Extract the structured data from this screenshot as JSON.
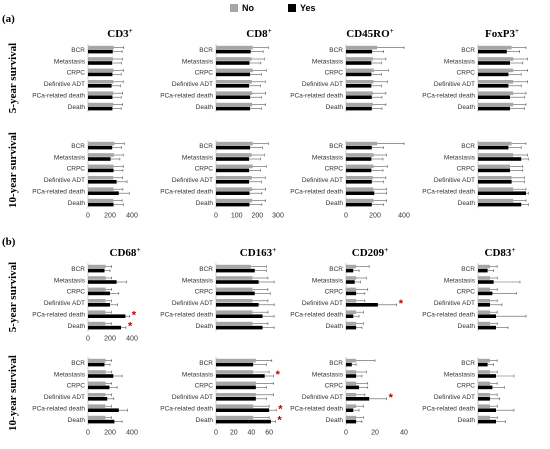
{
  "legend": [
    {
      "label": "No",
      "color": "#a6a6a6"
    },
    {
      "label": "Yes",
      "color": "#000000"
    }
  ],
  "panels": [
    {
      "label": "(a)"
    },
    {
      "label": "(b)"
    }
  ],
  "row_labels": [
    "5-year survival",
    "10-year survival"
  ],
  "significance_marker": "*",
  "colors": {
    "no": "#a6a6a6",
    "yes": "#000000",
    "star": "#c00000",
    "axis": "#bfbfbf",
    "error": "#595959"
  },
  "chart_data": [
    {
      "type": "bar",
      "panel": "a",
      "marker": "CD3",
      "marker_sup": "+",
      "row": "5-year survival",
      "categories": [
        "BCR",
        "Metastasis",
        "CRPC",
        "Definitive ADT",
        "PCa-related death",
        "Death"
      ],
      "xticks": [
        0,
        200,
        400
      ],
      "xlim": [
        0,
        400
      ],
      "ticks_shown": false,
      "series": [
        {
          "name": "No",
          "values": [
            235,
            228,
            232,
            230,
            230,
            230
          ],
          "errors": [
            90,
            85,
            90,
            90,
            85,
            85
          ]
        },
        {
          "name": "Yes",
          "values": [
            225,
            220,
            222,
            215,
            222,
            222
          ],
          "errors": [
            85,
            85,
            80,
            80,
            80,
            80
          ]
        }
      ],
      "significant": []
    },
    {
      "type": "bar",
      "panel": "a",
      "marker": "CD8",
      "marker_sup": "+",
      "row": "5-year survival",
      "categories": [
        "BCR",
        "Metastasis",
        "CRPC",
        "Definitive ADT",
        "PCa-related death",
        "Death"
      ],
      "xticks": [
        0,
        100,
        200,
        300
      ],
      "xlim": [
        0,
        300
      ],
      "ticks_shown": false,
      "series": [
        {
          "name": "No",
          "values": [
            178,
            172,
            178,
            173,
            175,
            175
          ],
          "errors": [
            75,
            62,
            65,
            65,
            65,
            65
          ]
        },
        {
          "name": "Yes",
          "values": [
            168,
            162,
            165,
            160,
            165,
            165
          ],
          "errors": [
            60,
            55,
            55,
            55,
            55,
            55
          ]
        }
      ],
      "significant": []
    },
    {
      "type": "bar",
      "panel": "a",
      "marker": "CD45RO",
      "marker_sup": "+",
      "row": "5-year survival",
      "categories": [
        "BCR",
        "Metastasis",
        "CRPC",
        "Definitive ADT",
        "PCa-related death",
        "Death"
      ],
      "xticks": [
        0,
        200,
        400
      ],
      "xlim": [
        0,
        400
      ],
      "ticks_shown": false,
      "series": [
        {
          "name": "No",
          "values": [
            215,
            185,
            192,
            190,
            185,
            185
          ],
          "errors": [
            185,
            90,
            100,
            95,
            90,
            90
          ]
        },
        {
          "name": "Yes",
          "values": [
            180,
            175,
            175,
            175,
            178,
            178
          ],
          "errors": [
            80,
            70,
            70,
            70,
            70,
            70
          ]
        }
      ],
      "significant": []
    },
    {
      "type": "bar",
      "panel": "a",
      "marker": "FoxP3",
      "marker_sup": "+",
      "row": "5-year survival",
      "categories": [
        "BCR",
        "Metastasis",
        "CRPC",
        "Definitive ADT",
        "PCa-related death",
        "Death"
      ],
      "xticks": [
        0,
        10,
        20,
        30
      ],
      "xlim": [
        0,
        30
      ],
      "ticks_shown": false,
      "series": [
        {
          "name": "No",
          "values": [
            21,
            22,
            22,
            22,
            22,
            22
          ],
          "errors": [
            9,
            9,
            9,
            9,
            8,
            8
          ]
        },
        {
          "name": "Yes",
          "values": [
            18,
            20,
            19,
            19,
            20,
            20
          ],
          "errors": [
            8,
            8,
            8,
            8,
            9,
            9
          ]
        }
      ],
      "significant": []
    },
    {
      "type": "bar",
      "panel": "a",
      "marker": "CD3",
      "marker_sup": "+",
      "row": "10-year survival",
      "categories": [
        "BCR",
        "Metastasis",
        "CRPC",
        "Definitive ADT",
        "PCa-related death",
        "Death"
      ],
      "xticks": [
        0,
        200,
        400
      ],
      "xlim": [
        0,
        400
      ],
      "ticks_shown": true,
      "series": [
        {
          "name": "No",
          "values": [
            240,
            235,
            232,
            230,
            232,
            230
          ],
          "errors": [
            90,
            85,
            90,
            85,
            85,
            80
          ]
        },
        {
          "name": "Yes",
          "values": [
            220,
            205,
            232,
            260,
            280,
            232
          ],
          "errors": [
            85,
            85,
            85,
            95,
            95,
            90
          ]
        }
      ],
      "significant": []
    },
    {
      "type": "bar",
      "panel": "a",
      "marker": "CD8",
      "marker_sup": "+",
      "row": "10-year survival",
      "categories": [
        "BCR",
        "Metastasis",
        "CRPC",
        "Definitive ADT",
        "PCa-related death",
        "Death"
      ],
      "xticks": [
        0,
        100,
        200,
        300
      ],
      "xlim": [
        0,
        300
      ],
      "ticks_shown": true,
      "series": [
        {
          "name": "No",
          "values": [
            178,
            172,
            178,
            173,
            175,
            175
          ],
          "errors": [
            75,
            62,
            65,
            65,
            65,
            65
          ]
        },
        {
          "name": "Yes",
          "values": [
            165,
            160,
            160,
            160,
            162,
            162
          ],
          "errors": [
            60,
            55,
            55,
            60,
            60,
            60
          ]
        }
      ],
      "significant": []
    },
    {
      "type": "bar",
      "panel": "a",
      "marker": "CD45RO",
      "marker_sup": "+",
      "row": "10-year survival",
      "categories": [
        "BCR",
        "Metastasis",
        "CRPC",
        "Definitive ADT",
        "PCa-related death",
        "Death"
      ],
      "xticks": [
        0,
        200,
        400
      ],
      "xlim": [
        0,
        400
      ],
      "ticks_shown": true,
      "series": [
        {
          "name": "No",
          "values": [
            215,
            190,
            190,
            185,
            188,
            190
          ],
          "errors": [
            185,
            90,
            95,
            90,
            90,
            90
          ]
        },
        {
          "name": "Yes",
          "values": [
            178,
            175,
            175,
            178,
            195,
            178
          ],
          "errors": [
            80,
            80,
            80,
            80,
            85,
            80
          ]
        }
      ],
      "significant": []
    },
    {
      "type": "bar",
      "panel": "a",
      "marker": "FoxP3",
      "marker_sup": "+",
      "row": "10-year survival",
      "categories": [
        "BCR",
        "Metastasis",
        "CRPC",
        "Definitive ADT",
        "PCa-related death",
        "Death"
      ],
      "xticks": [
        0,
        10,
        20,
        30
      ],
      "xlim": [
        0,
        30
      ],
      "ticks_shown": false,
      "series": [
        {
          "name": "No",
          "values": [
            21,
            22,
            20,
            21,
            22,
            22
          ],
          "errors": [
            9,
            9,
            8,
            8,
            8,
            8
          ]
        },
        {
          "name": "Yes",
          "values": [
            19,
            27,
            20,
            21,
            30,
            27
          ],
          "errors": [
            8,
            10,
            8,
            8,
            11,
            10
          ]
        }
      ],
      "significant": []
    },
    {
      "type": "bar",
      "panel": "b",
      "marker": "CD68",
      "marker_sup": "+",
      "row": "5-year survival",
      "categories": [
        "BCR",
        "Metastasis",
        "CRPC",
        "Definitive ADT",
        "PCa-related death",
        "Death"
      ],
      "xticks": [
        0,
        200,
        400
      ],
      "xlim": [
        0,
        400
      ],
      "ticks_shown": true,
      "series": [
        {
          "name": "No",
          "values": [
            160,
            160,
            160,
            158,
            158,
            158
          ],
          "errors": [
            55,
            55,
            55,
            55,
            55,
            55
          ]
        },
        {
          "name": "Yes",
          "values": [
            150,
            260,
            200,
            200,
            340,
            300
          ],
          "errors": [
            50,
            90,
            80,
            70,
            40,
            45
          ]
        }
      ],
      "significant": [
        "PCa-related death",
        "Death"
      ]
    },
    {
      "type": "bar",
      "panel": "b",
      "marker": "CD163",
      "marker_sup": "+",
      "row": "5-year survival",
      "categories": [
        "BCR",
        "Metastasis",
        "CRPC",
        "Definitive ADT",
        "PCa-related death",
        "Death"
      ],
      "xticks": [
        0,
        20,
        40,
        60,
        80
      ],
      "xlim": [
        0,
        80
      ],
      "ticks_shown": false,
      "series": [
        {
          "name": "No",
          "values": [
            45,
            47,
            47,
            47,
            47,
            47
          ],
          "errors": [
            20,
            20,
            20,
            20,
            20,
            20
          ]
        },
        {
          "name": "Yes",
          "values": [
            50,
            55,
            50,
            55,
            60,
            60
          ],
          "errors": [
            15,
            20,
            20,
            20,
            15,
            15
          ]
        }
      ],
      "significant": []
    },
    {
      "type": "bar",
      "panel": "b",
      "marker": "CD209",
      "marker_sup": "+",
      "row": "5-year survival",
      "categories": [
        "BCR",
        "Metastasis",
        "CRPC",
        "Definitive ADT",
        "PCa-related death",
        "Death"
      ],
      "xticks": [
        0,
        20,
        40
      ],
      "xlim": [
        0,
        40
      ],
      "ticks_shown": false,
      "series": [
        {
          "name": "No",
          "values": [
            7,
            7,
            7,
            7,
            7,
            7
          ],
          "errors": [
            9,
            7,
            8,
            6,
            5,
            5
          ]
        },
        {
          "name": "Yes",
          "values": [
            5,
            6,
            7,
            22,
            5,
            7
          ],
          "errors": [
            4,
            4,
            6,
            13,
            4,
            4
          ]
        }
      ],
      "significant": [
        "Definitive ADT"
      ]
    },
    {
      "type": "bar",
      "panel": "b",
      "marker": "CD83",
      "marker_sup": "+",
      "row": "5-year survival",
      "categories": [
        "BCR",
        "Metastasis",
        "CRPC",
        "Definitive ADT",
        "PCa-related death",
        "Death"
      ],
      "xticks": [
        0,
        20,
        40
      ],
      "xlim": [
        0,
        40
      ],
      "ticks_shown": false,
      "series": [
        {
          "name": "No",
          "values": [
            10,
            10,
            10,
            10,
            10,
            10
          ],
          "errors": [
            6,
            6,
            6,
            6,
            6,
            6
          ]
        },
        {
          "name": "Yes",
          "values": [
            8,
            13,
            12,
            10,
            15,
            15
          ],
          "errors": [
            5,
            22,
            20,
            10,
            25,
            10
          ]
        }
      ],
      "significant": []
    },
    {
      "type": "bar",
      "panel": "b",
      "marker": "CD68",
      "marker_sup": "+",
      "row": "10-year survival",
      "categories": [
        "BCR",
        "Metastasis",
        "CRPC",
        "Definitive ADT",
        "PCa-related death",
        "Death"
      ],
      "xticks": [
        0,
        200,
        400
      ],
      "xlim": [
        0,
        400
      ],
      "ticks_shown": true,
      "series": [
        {
          "name": "No",
          "values": [
            160,
            160,
            160,
            158,
            158,
            158
          ],
          "errors": [
            55,
            55,
            55,
            55,
            55,
            55
          ]
        },
        {
          "name": "Yes",
          "values": [
            150,
            230,
            195,
            175,
            280,
            240
          ],
          "errors": [
            50,
            80,
            70,
            60,
            80,
            70
          ]
        }
      ],
      "significant": []
    },
    {
      "type": "bar",
      "panel": "b",
      "marker": "CD163",
      "marker_sup": "+",
      "row": "10-year survival",
      "categories": [
        "BCR",
        "Metastasis",
        "CRPC",
        "Definitive ADT",
        "PCa-related death",
        "Death"
      ],
      "xticks": [
        0,
        20,
        40,
        60
      ],
      "xlim": [
        0,
        70
      ],
      "ticks_shown": true,
      "series": [
        {
          "name": "No",
          "values": [
            45,
            42,
            45,
            45,
            42,
            42
          ],
          "errors": [
            18,
            18,
            20,
            20,
            18,
            18
          ]
        },
        {
          "name": "Yes",
          "values": [
            42,
            55,
            45,
            45,
            60,
            62
          ],
          "errors": [
            15,
            10,
            12,
            12,
            8,
            5
          ]
        }
      ],
      "significant": [
        "Metastasis",
        "PCa-related death",
        "Death"
      ]
    },
    {
      "type": "bar",
      "panel": "b",
      "marker": "CD209",
      "marker_sup": "+",
      "row": "10-year survival",
      "categories": [
        "BCR",
        "Metastasis",
        "CRPC",
        "Definitive ADT",
        "PCa-related death",
        "Death"
      ],
      "xticks": [
        0,
        20,
        40
      ],
      "xlim": [
        0,
        40
      ],
      "ticks_shown": true,
      "series": [
        {
          "name": "No",
          "values": [
            7,
            7,
            7,
            7,
            7,
            7
          ],
          "errors": [
            13,
            7,
            8,
            6,
            5,
            5
          ]
        },
        {
          "name": "Yes",
          "values": [
            4,
            7,
            9,
            16,
            5,
            7
          ],
          "errors": [
            3,
            4,
            6,
            12,
            4,
            4
          ]
        }
      ],
      "significant": [
        "Definitive ADT"
      ]
    },
    {
      "type": "bar",
      "panel": "b",
      "marker": "CD83",
      "marker_sup": "+",
      "row": "10-year survival",
      "categories": [
        "BCR",
        "Metastasis",
        "CRPC",
        "Definitive ADT",
        "PCa-related death",
        "Death"
      ],
      "xticks": [
        0,
        20,
        40
      ],
      "xlim": [
        0,
        40
      ],
      "ticks_shown": false,
      "series": [
        {
          "name": "No",
          "values": [
            10,
            10,
            10,
            10,
            10,
            10
          ],
          "errors": [
            6,
            6,
            6,
            6,
            6,
            6
          ]
        },
        {
          "name": "Yes",
          "values": [
            8,
            15,
            12,
            10,
            15,
            15
          ],
          "errors": [
            5,
            15,
            10,
            8,
            15,
            8
          ]
        }
      ],
      "significant": []
    }
  ]
}
